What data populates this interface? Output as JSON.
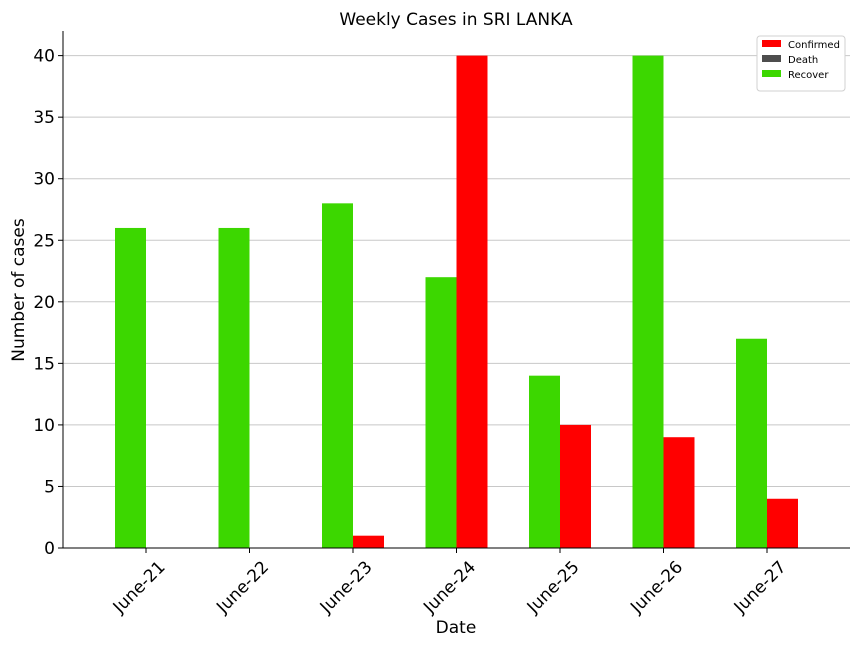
{
  "chart_data": {
    "type": "bar",
    "title": "Weekly Cases in SRI LANKA",
    "xlabel": "Date",
    "ylabel": "Number of cases",
    "categories": [
      "June-21",
      "June-22",
      "June-23",
      "June-24",
      "June-25",
      "June-26",
      "June-27"
    ],
    "series": [
      {
        "name": "Recover",
        "color": "#3cd700",
        "values": [
          26,
          26,
          28,
          22,
          14,
          40,
          17
        ]
      },
      {
        "name": "Confirmed",
        "color": "#ff0000",
        "values": [
          0,
          0,
          1,
          40,
          10,
          9,
          4
        ]
      },
      {
        "name": "Death",
        "color": "#4d4d4d",
        "values": [
          0,
          0,
          0,
          0,
          0,
          0,
          0
        ]
      }
    ],
    "legend_order": [
      "Confirmed",
      "Death",
      "Recover"
    ],
    "ylim": [
      0,
      42
    ],
    "yticks": [
      0,
      5,
      10,
      15,
      20,
      25,
      30,
      35,
      40
    ],
    "grid": "y",
    "legend_position": "top-right"
  }
}
